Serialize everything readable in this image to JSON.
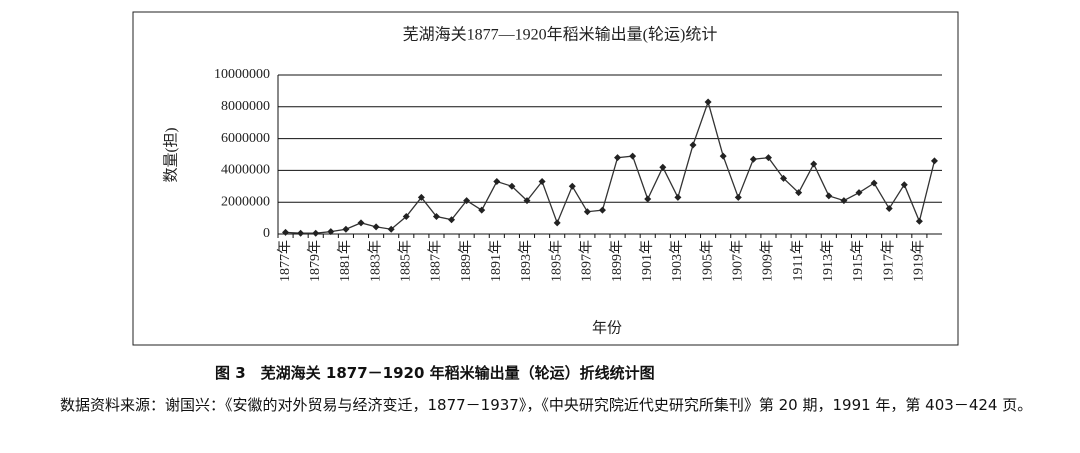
{
  "chart_data": {
    "type": "line",
    "title": "芜湖海关1877—1920年稻米输出量(轮运)统计",
    "y_label": "数量(担)",
    "x_label": "年份",
    "categories": [
      "1877年",
      null,
      "1879年",
      null,
      "1881年",
      null,
      "1883年",
      null,
      "1885年",
      null,
      "1887年",
      null,
      "1889年",
      null,
      "1891年",
      null,
      "1893年",
      null,
      "1895年",
      null,
      "1897年",
      null,
      "1899年",
      null,
      "1901年",
      null,
      "1903年",
      null,
      "1905年",
      null,
      "1907年",
      null,
      "1909年",
      null,
      "1911年",
      null,
      "1913年",
      null,
      "1915年",
      null,
      "1917年",
      null,
      "1919年",
      null
    ],
    "values": [
      100000,
      50000,
      50000,
      150000,
      300000,
      700000,
      450000,
      300000,
      1100000,
      2300000,
      1100000,
      900000,
      2100000,
      1500000,
      3300000,
      3000000,
      2100000,
      3300000,
      700000,
      3000000,
      1400000,
      1500000,
      4800000,
      4900000,
      2200000,
      4200000,
      2300000,
      5600000,
      8300000,
      4900000,
      2300000,
      4700000,
      4800000,
      3500000,
      2600000,
      4400000,
      2400000,
      2100000,
      2600000,
      3200000,
      1600000,
      3100000,
      800000,
      4600000
    ],
    "color": "#333333",
    "ylim": [
      0,
      10000000
    ],
    "yticks": [
      0,
      2000000,
      4000000,
      6000000,
      8000000,
      10000000
    ],
    "grid": true
  },
  "caption": "图 3　芜湖海关 1877－1920 年稻米输出量（轮运）折线统计图",
  "source": "数据资料来源：谢国兴：《安徽的对外贸易与经济变迁，1877－1937》，《中央研究院近代史研究所集刊》第 20 期，1991 年，第 403－424 页。"
}
